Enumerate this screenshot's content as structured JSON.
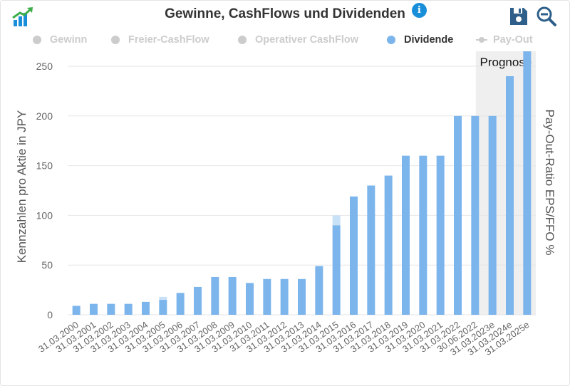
{
  "title": "Gewinne, CashFlows und Dividenden",
  "icons": {
    "logo": "chart-growth-icon",
    "info": "info-icon",
    "save": "save-icon",
    "zoom": "zoom-out-icon"
  },
  "info_glyph": "i",
  "legend": [
    {
      "label": "Gewinn",
      "active": false,
      "color": "#cccccc"
    },
    {
      "label": "Freier-CashFlow",
      "active": false,
      "color": "#cccccc"
    },
    {
      "label": "Operativer CashFlow",
      "active": false,
      "color": "#cccccc"
    },
    {
      "label": "Dividende",
      "active": true,
      "color": "#7cb5ec"
    },
    {
      "label": "Pay-Out",
      "active": false,
      "color": "#cccccc"
    }
  ],
  "colors": {
    "bar": "#7cb5ec",
    "bar_extra": "#c9e1f7",
    "forecast_band": "#efefef",
    "accent": "#1a8fd9",
    "icon_dark": "#2d5f8a"
  },
  "chart_data": {
    "type": "bar",
    "ylabel": "Kennzahlen pro Aktie in JPY",
    "y2label": "Pay-Out-Ratio EPS/FFO %",
    "ylim": [
      0,
      250
    ],
    "yticks": [
      0,
      50,
      100,
      150,
      200,
      250
    ],
    "forecast_label": "Prognose",
    "forecast_categories": [
      "31.03.2023e",
      "31.03.2024e",
      "31.03.2025e"
    ],
    "categories": [
      "31.03.2000",
      "31.03.2001",
      "31.03.2002",
      "31.03.2003",
      "31.03.2004",
      "31.03.2005",
      "31.03.2006",
      "31.03.2007",
      "31.03.2008",
      "31.03.2009",
      "31.03.2010",
      "31.03.2011",
      "31.03.2012",
      "31.03.2013",
      "31.03.2014",
      "31.03.2015",
      "31.03.2016",
      "31.03.2017",
      "31.03.2018",
      "31.03.2019",
      "31.03.2020",
      "31.03.2021",
      "31.03.2022",
      "30.06.2022",
      "31.03.2023e",
      "31.03.2024e",
      "31.03.2025e"
    ],
    "series": [
      {
        "name": "Dividende",
        "values": [
          9,
          11,
          11,
          11,
          13,
          15,
          22,
          28,
          38,
          38,
          32,
          36,
          36,
          36,
          49,
          90,
          119,
          130,
          140,
          160,
          160,
          160,
          200,
          200,
          200,
          240,
          265
        ],
        "extra": [
          0,
          0,
          0,
          0,
          0,
          3,
          0,
          0,
          0,
          0,
          0,
          0,
          0,
          0,
          0,
          10,
          0,
          0,
          0,
          0,
          0,
          0,
          0,
          0,
          0,
          0,
          0
        ]
      }
    ],
    "grid": true
  }
}
